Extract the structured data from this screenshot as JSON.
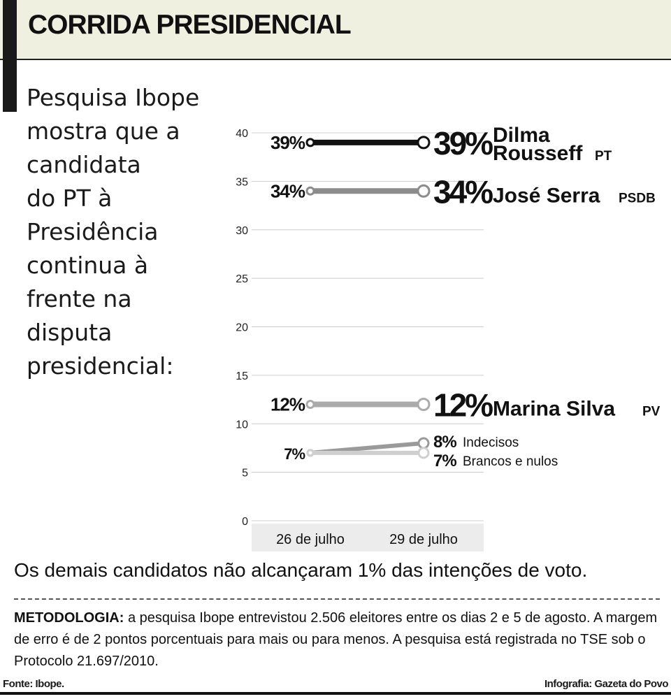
{
  "header": {
    "title": "CORRIDA PRESIDENCIAL"
  },
  "lede": [
    "Pesquisa Ibope",
    "mostra que a",
    "candidata",
    "do PT à",
    "Presidência",
    "continua à",
    "frente na",
    "disputa",
    "presidencial:"
  ],
  "chart_data": {
    "type": "line",
    "x": [
      "26 de julho",
      "29 de julho"
    ],
    "yticks": [
      0,
      5,
      10,
      15,
      20,
      25,
      30,
      35,
      40
    ],
    "ylim": [
      0,
      40
    ],
    "grid": true,
    "series": [
      {
        "name": "Dilma Rousseff",
        "party": "PT",
        "name_lines": [
          "Dilma",
          "Rousseff"
        ],
        "values": [
          39,
          39
        ],
        "start_label": "39%",
        "end_label": "39%",
        "color": "#111111",
        "style": "major"
      },
      {
        "name": "José Serra",
        "party": "PSDB",
        "name_lines": [
          "José Serra"
        ],
        "values": [
          34,
          34
        ],
        "start_label": "34%",
        "end_label": "34%",
        "color": "#8c8c8c",
        "style": "major"
      },
      {
        "name": "Marina Silva",
        "party": "PV",
        "name_lines": [
          "Marina Silva"
        ],
        "values": [
          12,
          12
        ],
        "start_label": "12%",
        "end_label": "12%",
        "color": "#ababab",
        "style": "major"
      },
      {
        "name": "Indecisos",
        "party": "",
        "name_lines": [
          "Indecisos"
        ],
        "values": [
          7,
          8
        ],
        "start_label": "7%",
        "end_label": "8%",
        "color": "#9a9a9a",
        "style": "minor"
      },
      {
        "name": "Brancos e nulos",
        "party": "",
        "name_lines": [
          "Brancos e nulos"
        ],
        "values": [
          7,
          7
        ],
        "start_label": "",
        "end_label": "7%",
        "color": "#cfcfcf",
        "style": "minor"
      }
    ]
  },
  "note": "Os demais candidatos não alcançaram 1% das intenções de voto.",
  "methodology": {
    "label": "METODOLOGIA:",
    "text": " a pesquisa Ibope entrevistou 2.506 eleitores entre os dias 2 e 5 de agosto. A margem de erro é de 2 pontos porcentuais para mais ou para menos. A pesquisa está registrada no TSE sob o Protocolo 21.697/2010."
  },
  "footer": {
    "source": "Fonte: Ibope.",
    "credit": "Infografia: Gazeta do Povo"
  }
}
